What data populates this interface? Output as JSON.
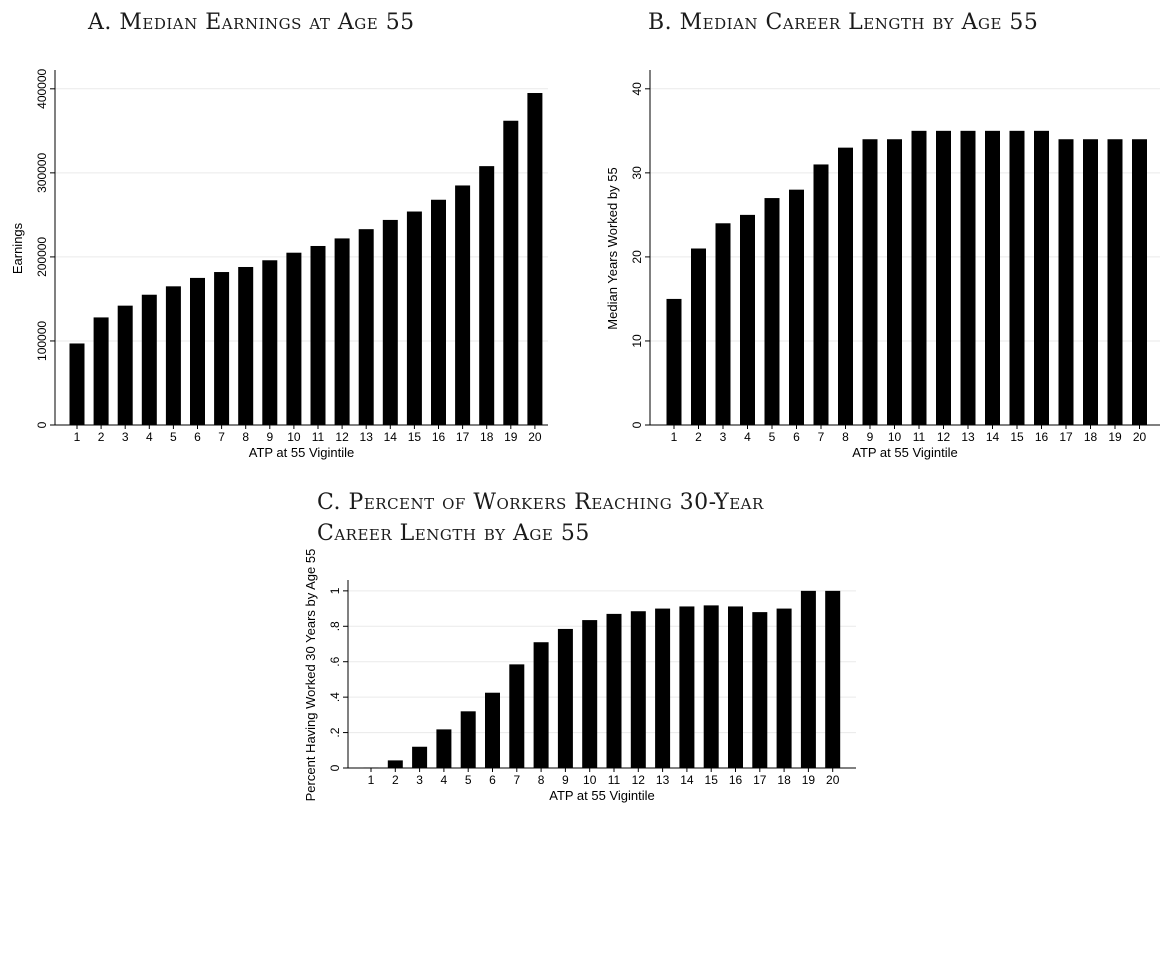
{
  "panels": {
    "a": {
      "title": "A. Median Earnings at Age 55"
    },
    "b": {
      "title": "B. Median Career Length by Age 55"
    },
    "c": {
      "title_line1": "C. Percent of Workers Reaching 30-Year",
      "title_line2": "Career Length by Age 55"
    }
  },
  "chart_data": [
    {
      "type": "bar",
      "title": "A. Median Earnings at Age 55",
      "xlabel": "ATP at 55 Vigintile",
      "ylabel": "Earnings",
      "categories": [
        "1",
        "2",
        "3",
        "4",
        "5",
        "6",
        "7",
        "8",
        "9",
        "10",
        "11",
        "12",
        "13",
        "14",
        "15",
        "16",
        "17",
        "18",
        "19",
        "20"
      ],
      "values": [
        97000,
        128000,
        142000,
        155000,
        165000,
        175000,
        182000,
        188000,
        196000,
        205000,
        213000,
        222000,
        233000,
        244000,
        254000,
        268000,
        285000,
        308000,
        362000,
        395000
      ],
      "ylim": [
        0,
        420000
      ],
      "yticks": [
        0,
        100000,
        200000,
        300000,
        400000
      ],
      "ytick_labels": [
        "0",
        "100000",
        "200000",
        "300000",
        "400000"
      ],
      "grid": true,
      "bar_color": "#000000"
    },
    {
      "type": "bar",
      "title": "B. Median Career Length by Age 55",
      "xlabel": "ATP at 55 Vigintile",
      "ylabel": "Median Years Worked by 55",
      "categories": [
        "1",
        "2",
        "3",
        "4",
        "5",
        "6",
        "7",
        "8",
        "9",
        "10",
        "11",
        "12",
        "13",
        "14",
        "15",
        "16",
        "17",
        "18",
        "19",
        "20"
      ],
      "values": [
        15,
        21,
        24,
        25,
        27,
        28,
        31,
        33,
        34,
        34,
        35,
        35,
        35,
        35,
        35,
        35,
        34,
        34,
        34,
        34
      ],
      "ylim": [
        0,
        42
      ],
      "yticks": [
        0,
        10,
        20,
        30,
        40
      ],
      "ytick_labels": [
        "0",
        "10",
        "20",
        "30",
        "40"
      ],
      "grid": true,
      "bar_color": "#000000"
    },
    {
      "type": "bar",
      "title": "C. Percent of Workers Reaching 30-Year Career Length by Age 55",
      "xlabel": "ATP at 55 Vigintile",
      "ylabel": "Percent Having Worked 30 Years by Age 55",
      "categories": [
        "1",
        "2",
        "3",
        "4",
        "5",
        "6",
        "7",
        "8",
        "9",
        "10",
        "11",
        "12",
        "13",
        "14",
        "15",
        "16",
        "17",
        "18",
        "19",
        "20"
      ],
      "values": [
        0.003,
        0.043,
        0.12,
        0.218,
        0.32,
        0.425,
        0.585,
        0.71,
        0.785,
        0.835,
        0.87,
        0.885,
        0.9,
        0.912,
        0.918,
        0.912,
        0.88,
        0.9,
        1.0,
        1.0
      ],
      "ylim": [
        0,
        1.05
      ],
      "yticks": [
        0,
        0.2,
        0.4,
        0.6,
        0.8,
        1
      ],
      "ytick_labels": [
        "0",
        ".2",
        ".4",
        ".6",
        ".8",
        "1"
      ],
      "grid": true,
      "bar_color": "#000000"
    }
  ]
}
